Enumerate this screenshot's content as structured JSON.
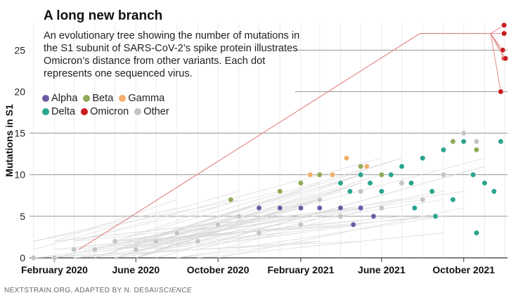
{
  "title": "A long new branch",
  "subtitle": "An evolutionary tree showing the number of mutations in the S1 subunit of SARS-CoV-2’s spike protein illustrates Omicron’s distance from other variants. Each dot represents one sequenced virus.",
  "credit": "NEXTSTRAIN.ORG, ADAPTED BY N. DESAI/",
  "credit_emph": "SCIENCE",
  "legend": [
    {
      "name": "Alpha",
      "color": "#6f5ba5"
    },
    {
      "name": "Beta",
      "color": "#8fab5c"
    },
    {
      "name": "Gamma",
      "color": "#f2b06a"
    },
    {
      "name": "Delta",
      "color": "#2aa58e"
    },
    {
      "name": "Omicron",
      "color": "#c81e1e"
    },
    {
      "name": "Other",
      "color": "#c4c4c4"
    }
  ],
  "chart_data": {
    "type": "scatter",
    "ylabel": "Mutations in S1",
    "xlabel": "",
    "x_ticks": [
      "February 2020",
      "June 2020",
      "October 2020",
      "February 2021",
      "June 2021",
      "October 2021"
    ],
    "x_tick_dates": [
      "2020-02-01",
      "2020-06-01",
      "2020-10-01",
      "2021-02-01",
      "2021-06-01",
      "2021-10-01"
    ],
    "xlim": [
      "2019-12-26",
      "2021-12-05"
    ],
    "y_ticks": [
      0,
      5,
      10,
      15,
      20,
      25
    ],
    "ylim": [
      0,
      29
    ],
    "grid": true,
    "series": [
      {
        "name": "Omicron",
        "points": [
          [
            "2021-11-25",
            20
          ],
          [
            "2021-11-30",
            24
          ],
          [
            "2021-11-28",
            25
          ],
          [
            "2021-11-30",
            27
          ],
          [
            "2021-11-30",
            28
          ],
          [
            "2021-12-02",
            24
          ]
        ]
      },
      {
        "name": "Delta",
        "points": [
          [
            "2021-04-01",
            9
          ],
          [
            "2021-04-15",
            8
          ],
          [
            "2021-05-01",
            10
          ],
          [
            "2021-05-15",
            9
          ],
          [
            "2021-06-01",
            8
          ],
          [
            "2021-06-15",
            10
          ],
          [
            "2021-07-01",
            11
          ],
          [
            "2021-07-15",
            9
          ],
          [
            "2021-08-01",
            12
          ],
          [
            "2021-08-15",
            8
          ],
          [
            "2021-09-01",
            13
          ],
          [
            "2021-09-15",
            7
          ],
          [
            "2021-10-01",
            14
          ],
          [
            "2021-10-15",
            10
          ],
          [
            "2021-11-01",
            9
          ],
          [
            "2021-11-15",
            8
          ],
          [
            "2021-11-25",
            14
          ],
          [
            "2021-10-20",
            3
          ],
          [
            "2021-07-20",
            6
          ],
          [
            "2021-08-20",
            5
          ]
        ]
      },
      {
        "name": "Alpha",
        "points": [
          [
            "2020-12-01",
            6
          ],
          [
            "2021-01-01",
            6
          ],
          [
            "2021-02-01",
            6
          ],
          [
            "2021-03-01",
            6
          ],
          [
            "2021-04-01",
            6
          ],
          [
            "2021-05-01",
            6
          ],
          [
            "2021-05-20",
            5
          ],
          [
            "2021-04-20",
            4
          ]
        ]
      },
      {
        "name": "Beta",
        "points": [
          [
            "2020-10-20",
            7
          ],
          [
            "2021-01-01",
            8
          ],
          [
            "2021-02-01",
            9
          ],
          [
            "2021-03-01",
            10
          ],
          [
            "2021-04-01",
            9
          ],
          [
            "2021-05-01",
            11
          ],
          [
            "2021-06-01",
            10
          ],
          [
            "2021-08-01",
            12
          ],
          [
            "2021-09-15",
            14
          ],
          [
            "2021-10-20",
            13
          ]
        ]
      },
      {
        "name": "Gamma",
        "points": [
          [
            "2021-02-15",
            10
          ],
          [
            "2021-04-10",
            12
          ],
          [
            "2021-03-20",
            10
          ],
          [
            "2021-05-10",
            11
          ]
        ]
      },
      {
        "name": "Other",
        "points": [
          [
            "2020-01-01",
            0
          ],
          [
            "2020-02-01",
            0
          ],
          [
            "2020-03-01",
            1
          ],
          [
            "2020-04-01",
            1
          ],
          [
            "2020-05-01",
            2
          ],
          [
            "2020-06-01",
            1
          ],
          [
            "2020-07-01",
            2
          ],
          [
            "2020-08-01",
            3
          ],
          [
            "2020-09-01",
            2
          ],
          [
            "2020-10-01",
            4
          ],
          [
            "2020-11-01",
            5
          ],
          [
            "2020-12-01",
            3
          ],
          [
            "2021-01-01",
            6
          ],
          [
            "2021-02-01",
            4
          ],
          [
            "2021-03-01",
            7
          ],
          [
            "2021-04-01",
            5
          ],
          [
            "2021-05-01",
            8
          ],
          [
            "2021-06-01",
            6
          ],
          [
            "2021-07-01",
            9
          ],
          [
            "2021-08-01",
            7
          ],
          [
            "2021-09-01",
            10
          ],
          [
            "2021-10-01",
            15
          ],
          [
            "2021-10-20",
            14
          ]
        ]
      }
    ]
  }
}
